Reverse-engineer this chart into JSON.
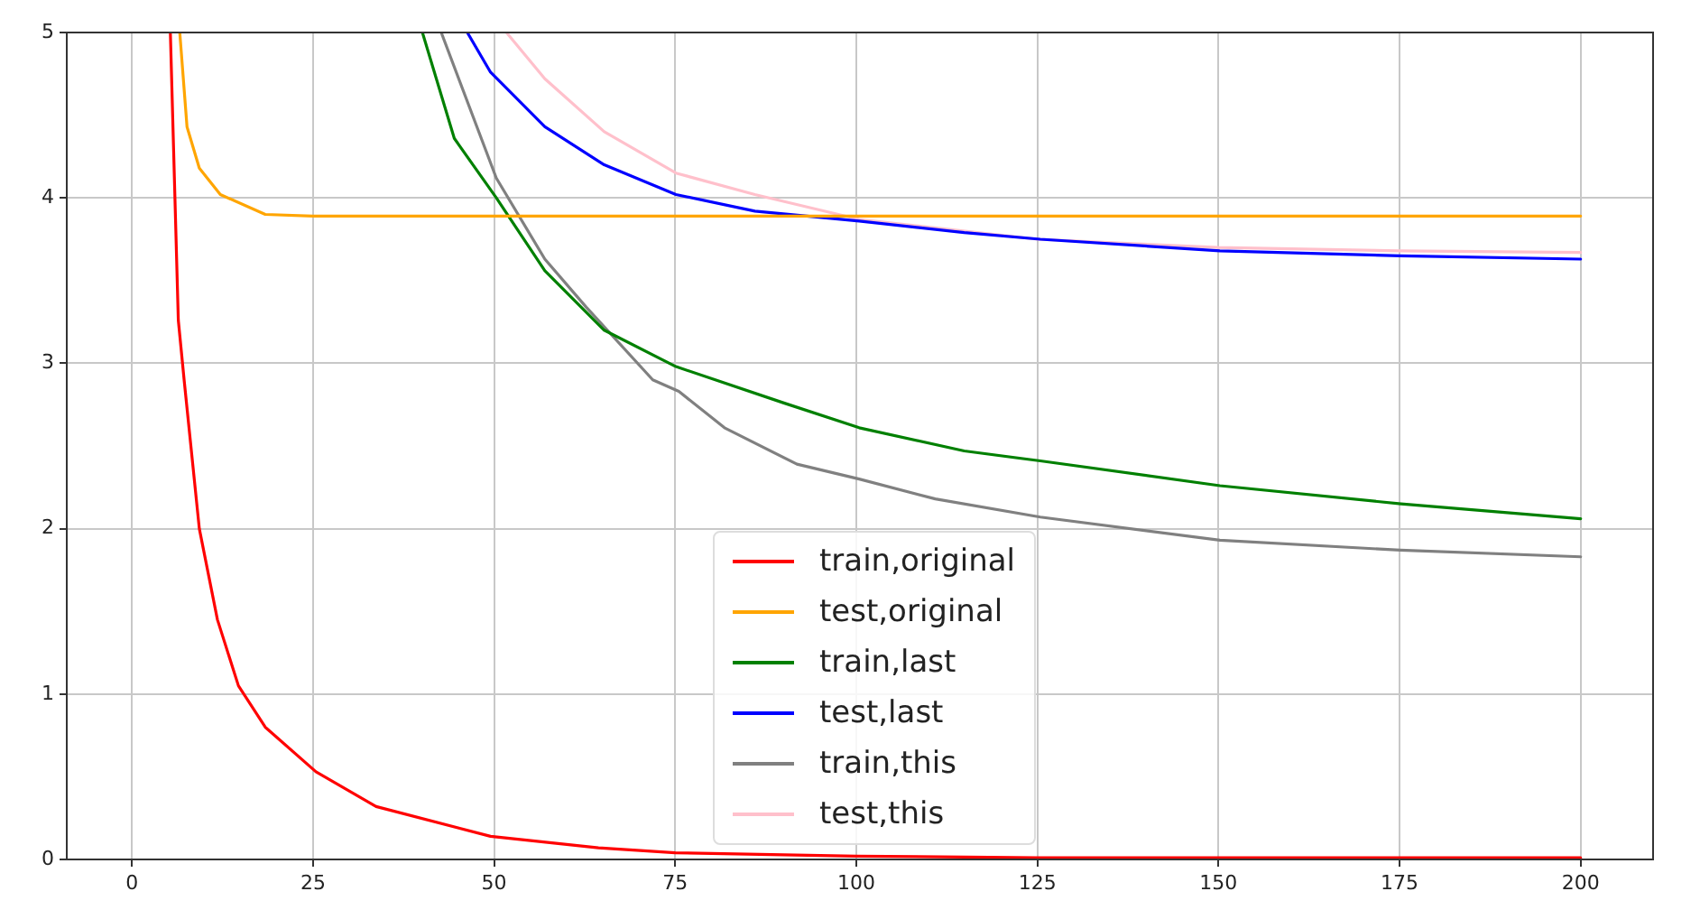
{
  "chart_data": {
    "type": "line",
    "xlim": [
      -9,
      210
    ],
    "ylim": [
      0,
      5
    ],
    "xticks": [
      0,
      25,
      50,
      75,
      100,
      125,
      150,
      175,
      200
    ],
    "yticks": [
      0,
      1,
      2,
      3,
      4,
      5
    ],
    "grid": true,
    "legend": "bottom",
    "marker": "none",
    "line_style": "solid",
    "series": [
      {
        "name": "train,original",
        "color": "#ff0000",
        "x": [
          5.3,
          6.4,
          7.2,
          9.3,
          11.8,
          14.7,
          18.4,
          25.4,
          33.7,
          49.5,
          64.4,
          75,
          100,
          125,
          150,
          175,
          200
        ],
        "values": [
          5,
          3.26,
          2.9,
          2.0,
          1.45,
          1.05,
          0.8,
          0.53,
          0.32,
          0.14,
          0.07,
          0.04,
          0.02,
          0.01,
          0.01,
          0.01,
          0.01
        ]
      },
      {
        "name": "test,original",
        "color": "#ffa500",
        "x": [
          6.6,
          7.6,
          9.3,
          12.2,
          18.4,
          25,
          50,
          100,
          150,
          200
        ],
        "values": [
          5,
          4.43,
          4.18,
          4.02,
          3.9,
          3.89,
          3.89,
          3.89,
          3.89,
          3.89
        ]
      },
      {
        "name": "train,last",
        "color": "#008000",
        "x": [
          40.1,
          44.5,
          50.3,
          57,
          65.2,
          75.1,
          90,
          100.4,
          114.9,
          125.4,
          150.2,
          175.2,
          200
        ],
        "values": [
          5,
          4.36,
          4.0,
          3.56,
          3.2,
          2.98,
          2.76,
          2.61,
          2.47,
          2.41,
          2.26,
          2.15,
          2.06
        ]
      },
      {
        "name": "test,last",
        "color": "#0000ff",
        "x": [
          46.3,
          49.5,
          57,
          65.2,
          75.1,
          86,
          100.4,
          114.9,
          125.4,
          150.2,
          175.1,
          200
        ],
        "values": [
          5,
          4.76,
          4.43,
          4.2,
          4.02,
          3.92,
          3.86,
          3.79,
          3.75,
          3.68,
          3.65,
          3.63
        ]
      },
      {
        "name": "train,this",
        "color": "#808080",
        "x": [
          42.7,
          50.3,
          57,
          62.7,
          71.9,
          75.5,
          81.8,
          91.8,
          100.4,
          110.9,
          125.4,
          150.2,
          175.1,
          200
        ],
        "values": [
          5,
          4.12,
          3.63,
          3.34,
          2.9,
          2.83,
          2.61,
          2.39,
          2.3,
          2.18,
          2.07,
          1.93,
          1.87,
          1.83
        ]
      },
      {
        "name": "test,this",
        "color": "#ffc0cb",
        "x": [
          51.7,
          57,
          65.2,
          75.1,
          86,
          100.4,
          125,
          150,
          175,
          200
        ],
        "values": [
          5,
          4.72,
          4.4,
          4.15,
          4.02,
          3.87,
          3.75,
          3.7,
          3.68,
          3.67
        ]
      }
    ]
  }
}
